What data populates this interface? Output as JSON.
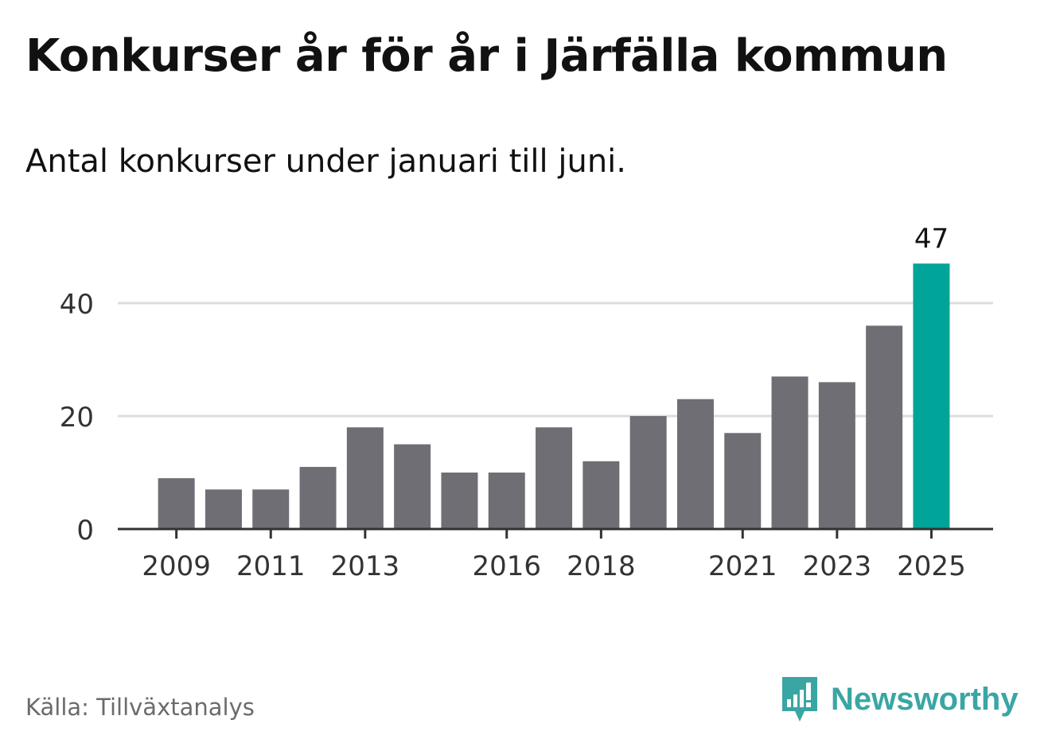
{
  "title": "Konkurser år för år i Järfälla kommun",
  "subtitle": "Antal konkurser under januari till juni.",
  "source": "Källa: Tillväxtanalys",
  "brand": {
    "name": "Newsworthy",
    "icon": "newsworthy-logo-icon",
    "color": "#3aa6a3"
  },
  "chart_data": {
    "type": "bar",
    "categories": [
      "2009",
      "2010",
      "2011",
      "2012",
      "2013",
      "2014",
      "2015",
      "2016",
      "2017",
      "2018",
      "2019",
      "2020",
      "2021",
      "2022",
      "2023",
      "2024",
      "2025"
    ],
    "values": [
      9,
      7,
      7,
      11,
      18,
      15,
      10,
      10,
      18,
      12,
      20,
      23,
      17,
      27,
      26,
      36,
      47
    ],
    "x_tick_labels": [
      "2009",
      "2011",
      "2013",
      "2016",
      "2018",
      "2021",
      "2023",
      "2025"
    ],
    "y_ticks": [
      0,
      20,
      40
    ],
    "ylim": [
      0,
      47
    ],
    "grid": true,
    "highlight": {
      "category": "2025",
      "label": "47"
    },
    "colors": {
      "bar": "#6f6e74",
      "highlight": "#00a499",
      "grid": "#dddddd",
      "axis": "#333333"
    }
  }
}
